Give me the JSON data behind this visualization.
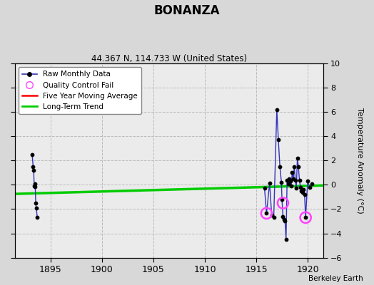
{
  "title": "BONANZA",
  "subtitle": "44.367 N, 114.733 W (United States)",
  "ylabel_right": "Temperature Anomaly (°C)",
  "credit": "Berkeley Earth",
  "xlim": [
    1891.5,
    1921.5
  ],
  "ylim": [
    -6,
    10
  ],
  "yticks": [
    -6,
    -4,
    -2,
    0,
    2,
    4,
    6,
    8,
    10
  ],
  "xticks": [
    1895,
    1900,
    1905,
    1910,
    1915,
    1920
  ],
  "background_color": "#d8d8d8",
  "plot_background": "#ebebeb",
  "raw_data_1893_x": [
    1893.2,
    1893.3,
    1893.35,
    1893.4,
    1893.45,
    1893.5,
    1893.55,
    1893.6,
    1893.7
  ],
  "raw_data_1893_y": [
    2.5,
    1.5,
    1.2,
    -0.1,
    0.1,
    -0.15,
    -1.5,
    -1.9,
    -2.7
  ],
  "raw_data_1916_1921": [
    [
      1915.8,
      -0.25
    ],
    [
      1916.0,
      -2.35
    ],
    [
      1916.3,
      0.15
    ],
    [
      1916.5,
      -2.5
    ],
    [
      1916.7,
      -2.7
    ],
    [
      1917.0,
      6.2
    ],
    [
      1917.15,
      3.7
    ],
    [
      1917.3,
      1.5
    ],
    [
      1917.45,
      0.2
    ],
    [
      1917.5,
      -1.2
    ],
    [
      1917.6,
      -2.6
    ],
    [
      1917.7,
      -2.85
    ],
    [
      1917.8,
      -3.0
    ],
    [
      1917.9,
      -4.5
    ],
    [
      1918.0,
      0.35
    ],
    [
      1918.1,
      0.1
    ],
    [
      1918.2,
      0.5
    ],
    [
      1918.3,
      0.3
    ],
    [
      1918.4,
      -0.1
    ],
    [
      1918.5,
      1.0
    ],
    [
      1918.6,
      0.5
    ],
    [
      1918.7,
      1.5
    ],
    [
      1918.8,
      0.4
    ],
    [
      1918.9,
      -0.3
    ],
    [
      1919.0,
      2.2
    ],
    [
      1919.1,
      1.5
    ],
    [
      1919.2,
      0.4
    ],
    [
      1919.3,
      -0.2
    ],
    [
      1919.4,
      -0.5
    ],
    [
      1919.5,
      -0.6
    ],
    [
      1919.6,
      -0.4
    ],
    [
      1919.7,
      -0.8
    ],
    [
      1919.8,
      -2.7
    ],
    [
      1920.0,
      0.3
    ],
    [
      1920.2,
      -0.2
    ],
    [
      1920.4,
      0.1
    ]
  ],
  "qc_fail_points": [
    [
      1916.0,
      -2.35
    ],
    [
      1917.6,
      -1.5
    ],
    [
      1919.8,
      -2.7
    ]
  ],
  "long_term_trend_x": [
    1891.5,
    1921.5
  ],
  "long_term_trend_y": [
    -0.75,
    -0.05
  ],
  "raw_color": "#3333bb",
  "marker_color": "#000000",
  "moving_avg_color": "#ff0000",
  "trend_color": "#00cc00",
  "qc_color": "#ff44ff",
  "grid_color": "#bbbbbb",
  "grid_linestyle": "--"
}
